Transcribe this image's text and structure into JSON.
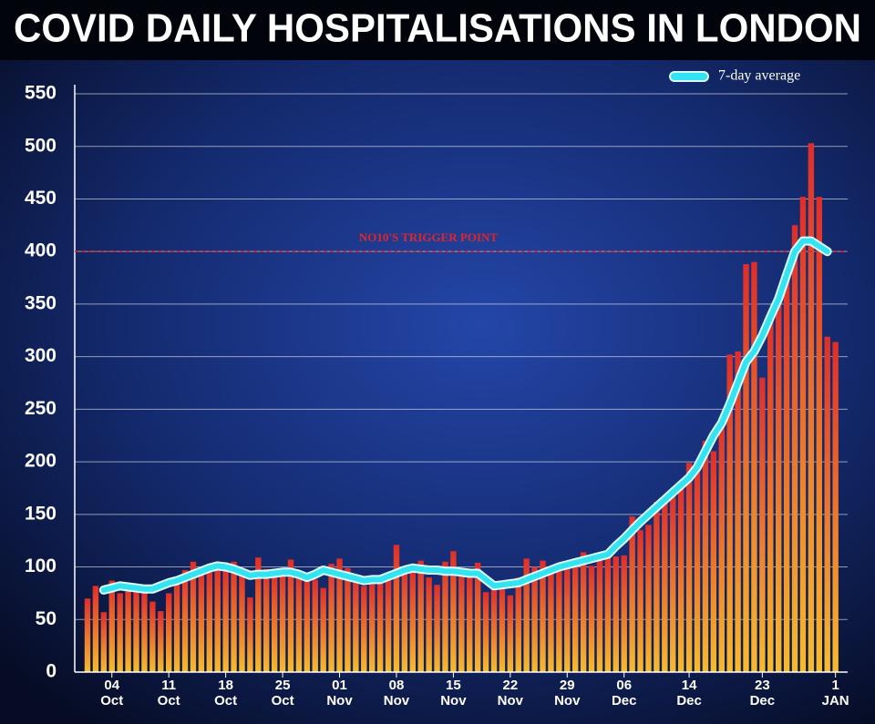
{
  "chart_data": {
    "type": "bar",
    "title": "COVID DAILY HOSPITALISATIONS IN LONDON",
    "categories": [
      null,
      null,
      null,
      "04 Oct",
      null,
      null,
      null,
      null,
      null,
      null,
      "11 Oct",
      null,
      null,
      null,
      null,
      null,
      null,
      "18 Oct",
      null,
      null,
      null,
      null,
      null,
      null,
      "25 Oct",
      null,
      null,
      null,
      null,
      null,
      null,
      "01 Nov",
      null,
      null,
      null,
      null,
      null,
      null,
      "08 Nov",
      null,
      null,
      null,
      null,
      null,
      null,
      "15 Nov",
      null,
      null,
      null,
      null,
      null,
      null,
      "22 Nov",
      null,
      null,
      null,
      null,
      null,
      null,
      "29 Nov",
      null,
      null,
      null,
      null,
      null,
      null,
      "06 Dec",
      null,
      null,
      null,
      null,
      null,
      null,
      null,
      "14 Dec",
      null,
      null,
      null,
      null,
      null,
      null,
      null,
      null,
      "23 Dec",
      null,
      null,
      null,
      null,
      null,
      null,
      null,
      null,
      "1 JAN"
    ],
    "values": [
      70,
      82,
      57,
      87,
      75,
      85,
      80,
      76,
      67,
      58,
      75,
      88,
      97,
      105,
      95,
      97,
      100,
      98,
      105,
      96,
      71,
      109,
      98,
      95,
      98,
      107,
      95,
      90,
      88,
      80,
      103,
      108,
      99,
      90,
      82,
      85,
      86,
      87,
      121,
      100,
      95,
      106,
      90,
      83,
      105,
      115,
      94,
      90,
      104,
      76,
      80,
      82,
      73,
      90,
      108,
      100,
      106,
      96,
      98,
      100,
      108,
      114,
      101,
      106,
      112,
      110,
      111,
      148,
      135,
      140,
      162,
      165,
      170,
      175,
      199,
      200,
      220,
      210,
      240,
      302,
      305,
      388,
      390,
      280,
      340,
      360,
      380,
      425,
      452,
      503,
      452,
      319,
      314
    ],
    "color": "#de2e2a",
    "color_bottom": "#f6bb2f",
    "line": {
      "name": "7-day average",
      "color": "#33e3ef",
      "values": [
        null,
        null,
        78,
        80,
        82,
        81,
        80,
        79,
        79,
        82,
        85,
        87,
        90,
        93,
        96,
        99,
        101,
        100,
        98,
        95,
        92,
        93,
        93,
        94,
        95,
        95,
        93,
        90,
        93,
        97,
        95,
        93,
        91,
        89,
        87,
        88,
        88,
        91,
        94,
        97,
        99,
        98,
        97,
        97,
        96,
        96,
        95,
        94,
        94,
        88,
        82,
        83,
        84,
        85,
        88,
        91,
        94,
        97,
        100,
        102,
        104,
        106,
        108,
        110,
        112,
        120,
        127,
        135,
        143,
        150,
        157,
        164,
        171,
        178,
        185,
        195,
        210,
        225,
        237,
        255,
        275,
        295,
        305,
        320,
        338,
        355,
        378,
        400,
        410,
        410,
        405,
        400,
        null
      ]
    },
    "annotation": {
      "text": "NO10'S TRIGGER POINT",
      "value": 400,
      "color": "#e0262a"
    },
    "ylim": [
      0,
      550
    ],
    "yticks": [
      0,
      50,
      100,
      150,
      200,
      250,
      300,
      350,
      400,
      450,
      500,
      550
    ],
    "grid": true,
    "legend": "top-right"
  }
}
